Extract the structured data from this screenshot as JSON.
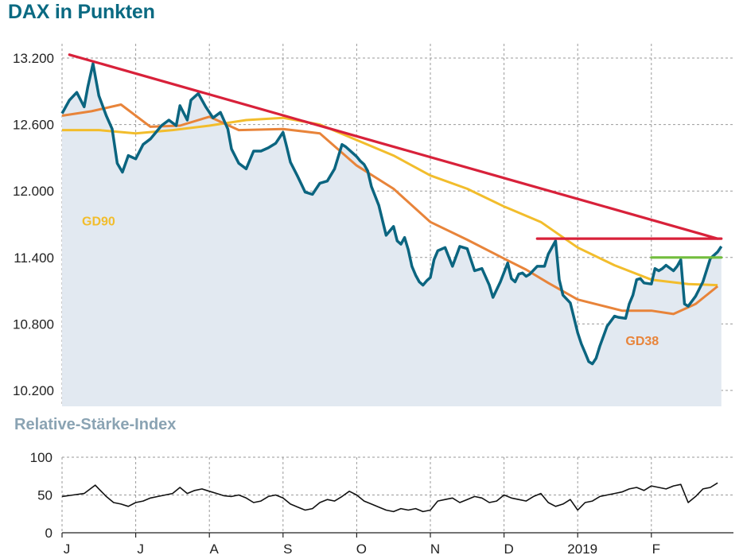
{
  "main_chart_title": "DAX in Punkten",
  "rsi_title": "Relative-Stärke-Index",
  "chart_data": [
    {
      "type": "line",
      "title": "DAX in Punkten",
      "x_tick_labels": [
        "J",
        "J",
        "A",
        "S",
        "O",
        "N",
        "D",
        "2019",
        "F"
      ],
      "x_month_index": [
        0,
        1,
        2,
        3,
        4,
        5,
        6,
        7,
        8
      ],
      "x_range": [
        0,
        8.9
      ],
      "y_ticks": [
        13200,
        12600,
        12000,
        11400,
        10800,
        10200
      ],
      "y_tick_labels": [
        "13.200",
        "12.600",
        "12.000",
        "11.400",
        "10.800",
        "10.200"
      ],
      "ylim": [
        10050,
        13500
      ],
      "grid": true,
      "series": [
        {
          "name": "DAX",
          "color": "#0b6580",
          "points": [
            [
              0,
              12700
            ],
            [
              0.1,
              12820
            ],
            [
              0.2,
              12890
            ],
            [
              0.3,
              12760
            ],
            [
              0.35,
              12940
            ],
            [
              0.42,
              13150
            ],
            [
              0.5,
              12860
            ],
            [
              0.6,
              12680
            ],
            [
              0.68,
              12560
            ],
            [
              0.75,
              12250
            ],
            [
              0.82,
              12170
            ],
            [
              0.9,
              12320
            ],
            [
              1.0,
              12290
            ],
            [
              1.1,
              12420
            ],
            [
              1.2,
              12470
            ],
            [
              1.35,
              12590
            ],
            [
              1.45,
              12640
            ],
            [
              1.55,
              12590
            ],
            [
              1.6,
              12770
            ],
            [
              1.7,
              12640
            ],
            [
              1.75,
              12820
            ],
            [
              1.85,
              12880
            ],
            [
              1.95,
              12760
            ],
            [
              2.05,
              12660
            ],
            [
              2.15,
              12710
            ],
            [
              2.25,
              12560
            ],
            [
              2.3,
              12380
            ],
            [
              2.4,
              12250
            ],
            [
              2.5,
              12200
            ],
            [
              2.6,
              12360
            ],
            [
              2.7,
              12360
            ],
            [
              2.8,
              12390
            ],
            [
              2.9,
              12430
            ],
            [
              3.0,
              12530
            ],
            [
              3.05,
              12400
            ],
            [
              3.1,
              12260
            ],
            [
              3.2,
              12130
            ],
            [
              3.3,
              11990
            ],
            [
              3.4,
              11970
            ],
            [
              3.5,
              12070
            ],
            [
              3.6,
              12090
            ],
            [
              3.7,
              12200
            ],
            [
              3.8,
              12420
            ],
            [
              3.85,
              12400
            ],
            [
              3.95,
              12340
            ],
            [
              4.0,
              12310
            ],
            [
              4.05,
              12270
            ],
            [
              4.1,
              12240
            ],
            [
              4.15,
              12180
            ],
            [
              4.2,
              12040
            ],
            [
              4.3,
              11870
            ],
            [
              4.4,
              11600
            ],
            [
              4.5,
              11680
            ],
            [
              4.55,
              11550
            ],
            [
              4.6,
              11520
            ],
            [
              4.65,
              11580
            ],
            [
              4.7,
              11470
            ],
            [
              4.75,
              11320
            ],
            [
              4.8,
              11240
            ],
            [
              4.85,
              11180
            ],
            [
              4.9,
              11150
            ],
            [
              4.95,
              11190
            ],
            [
              5.0,
              11220
            ],
            [
              5.05,
              11380
            ],
            [
              5.1,
              11460
            ],
            [
              5.2,
              11490
            ],
            [
              5.3,
              11320
            ],
            [
              5.4,
              11500
            ],
            [
              5.5,
              11480
            ],
            [
              5.6,
              11280
            ],
            [
              5.7,
              11300
            ],
            [
              5.8,
              11150
            ],
            [
              5.85,
              11040
            ],
            [
              5.95,
              11180
            ],
            [
              6.05,
              11350
            ],
            [
              6.1,
              11210
            ],
            [
              6.15,
              11180
            ],
            [
              6.2,
              11250
            ],
            [
              6.25,
              11260
            ],
            [
              6.3,
              11230
            ],
            [
              6.35,
              11250
            ],
            [
              6.45,
              11320
            ],
            [
              6.55,
              11320
            ],
            [
              6.6,
              11430
            ],
            [
              6.7,
              11550
            ],
            [
              6.75,
              11200
            ],
            [
              6.8,
              11060
            ],
            [
              6.9,
              10990
            ],
            [
              7.0,
              10720
            ],
            [
              7.05,
              10620
            ],
            [
              7.1,
              10540
            ],
            [
              7.15,
              10460
            ],
            [
              7.2,
              10440
            ],
            [
              7.25,
              10490
            ],
            [
              7.3,
              10600
            ],
            [
              7.4,
              10780
            ],
            [
              7.5,
              10870
            ],
            [
              7.55,
              10860
            ],
            [
              7.65,
              10850
            ],
            [
              7.7,
              10980
            ],
            [
              7.75,
              11060
            ],
            [
              7.8,
              11200
            ],
            [
              7.85,
              11210
            ],
            [
              7.9,
              11170
            ],
            [
              8.0,
              11160
            ],
            [
              8.05,
              11300
            ],
            [
              8.1,
              11280
            ],
            [
              8.15,
              11300
            ],
            [
              8.2,
              11330
            ],
            [
              8.3,
              11280
            ],
            [
              8.35,
              11320
            ],
            [
              8.4,
              11380
            ],
            [
              8.45,
              10980
            ],
            [
              8.5,
              10960
            ],
            [
              8.6,
              11050
            ],
            [
              8.7,
              11180
            ],
            [
              8.8,
              11390
            ],
            [
              8.9,
              11450
            ],
            [
              8.95,
              11500
            ]
          ]
        },
        {
          "name": "GD90",
          "color": "#f2bd2c",
          "points": [
            [
              0,
              12550
            ],
            [
              0.5,
              12550
            ],
            [
              1,
              12520
            ],
            [
              1.5,
              12550
            ],
            [
              2,
              12590
            ],
            [
              2.5,
              12640
            ],
            [
              3,
              12660
            ],
            [
              3.5,
              12600
            ],
            [
              4,
              12460
            ],
            [
              4.5,
              12320
            ],
            [
              5,
              12140
            ],
            [
              5.5,
              12020
            ],
            [
              6,
              11860
            ],
            [
              6.5,
              11720
            ],
            [
              7,
              11490
            ],
            [
              7.5,
              11330
            ],
            [
              8,
              11200
            ],
            [
              8.5,
              11160
            ],
            [
              8.9,
              11150
            ]
          ]
        },
        {
          "name": "GD38",
          "color": "#e8843a",
          "points": [
            [
              0,
              12680
            ],
            [
              0.4,
              12720
            ],
            [
              0.8,
              12780
            ],
            [
              1.2,
              12580
            ],
            [
              1.6,
              12590
            ],
            [
              2,
              12670
            ],
            [
              2.4,
              12550
            ],
            [
              3,
              12560
            ],
            [
              3.5,
              12520
            ],
            [
              4,
              12230
            ],
            [
              4.5,
              12020
            ],
            [
              5,
              11720
            ],
            [
              5.5,
              11560
            ],
            [
              6,
              11390
            ],
            [
              6.3,
              11290
            ],
            [
              6.6,
              11170
            ],
            [
              7,
              11020
            ],
            [
              7.3,
              10970
            ],
            [
              7.6,
              10920
            ],
            [
              8,
              10920
            ],
            [
              8.3,
              10890
            ],
            [
              8.6,
              10980
            ],
            [
              8.9,
              11140
            ]
          ]
        }
      ],
      "trendlines": [
        {
          "color": "#d8213a",
          "points": [
            [
              0.1,
              13230
            ],
            [
              8.9,
              11570
            ]
          ]
        },
        {
          "color": "#d8213a",
          "points": [
            [
              6.45,
              11570
            ],
            [
              8.95,
              11570
            ]
          ]
        },
        {
          "color": "#72bd3d",
          "points": [
            [
              8.0,
              11400
            ],
            [
              8.95,
              11400
            ]
          ]
        }
      ],
      "annotations": [
        {
          "text": "GD90",
          "color": "#f2bd2c",
          "x": 0.27,
          "y": 11690
        },
        {
          "text": "GD38",
          "color": "#e8843a",
          "x": 7.65,
          "y": 10610
        }
      ]
    },
    {
      "type": "line",
      "title": "Relative-Stärke-Index",
      "x_range": [
        0,
        8.9
      ],
      "y_ticks": [
        100,
        50,
        0
      ],
      "y_tick_labels": [
        "100",
        "50",
        "0"
      ],
      "ylim": [
        0,
        100
      ],
      "grid": true,
      "series": [
        {
          "name": "RSI",
          "color": "#111111",
          "values_x": [
            0,
            0.15,
            0.3,
            0.45,
            0.5,
            0.6,
            0.7,
            0.8,
            0.9,
            1.0,
            1.1,
            1.2,
            1.3,
            1.4,
            1.5,
            1.6,
            1.7,
            1.8,
            1.9,
            2.0,
            2.1,
            2.2,
            2.3,
            2.4,
            2.5,
            2.6,
            2.7,
            2.8,
            2.9,
            3.0,
            3.1,
            3.2,
            3.3,
            3.4,
            3.5,
            3.6,
            3.7,
            3.8,
            3.9,
            4.0,
            4.1,
            4.2,
            4.3,
            4.4,
            4.5,
            4.6,
            4.7,
            4.8,
            4.9,
            5.0,
            5.1,
            5.2,
            5.3,
            5.4,
            5.5,
            5.6,
            5.7,
            5.8,
            5.9,
            6.0,
            6.1,
            6.2,
            6.3,
            6.4,
            6.5,
            6.6,
            6.7,
            6.8,
            6.9,
            7.0,
            7.1,
            7.2,
            7.3,
            7.4,
            7.5,
            7.6,
            7.7,
            7.8,
            7.9,
            8.0,
            8.1,
            8.2,
            8.3,
            8.4,
            8.5,
            8.6,
            8.7,
            8.8,
            8.9
          ],
          "values": [
            48,
            50,
            52,
            63,
            58,
            48,
            40,
            38,
            35,
            40,
            42,
            46,
            48,
            50,
            52,
            60,
            52,
            56,
            58,
            55,
            52,
            49,
            48,
            50,
            46,
            40,
            42,
            48,
            50,
            46,
            38,
            34,
            30,
            32,
            40,
            44,
            42,
            48,
            55,
            50,
            42,
            38,
            34,
            30,
            28,
            32,
            30,
            32,
            28,
            30,
            42,
            44,
            46,
            40,
            44,
            48,
            46,
            40,
            42,
            50,
            46,
            44,
            42,
            48,
            52,
            40,
            35,
            38,
            44,
            30,
            40,
            42,
            48,
            50,
            52,
            54,
            58,
            60,
            56,
            62,
            60,
            58,
            62,
            64,
            40,
            48,
            58,
            60,
            66
          ]
        }
      ],
      "x_tick_labels": [
        "J",
        "J",
        "A",
        "S",
        "O",
        "N",
        "D",
        "2019",
        "F"
      ]
    }
  ]
}
